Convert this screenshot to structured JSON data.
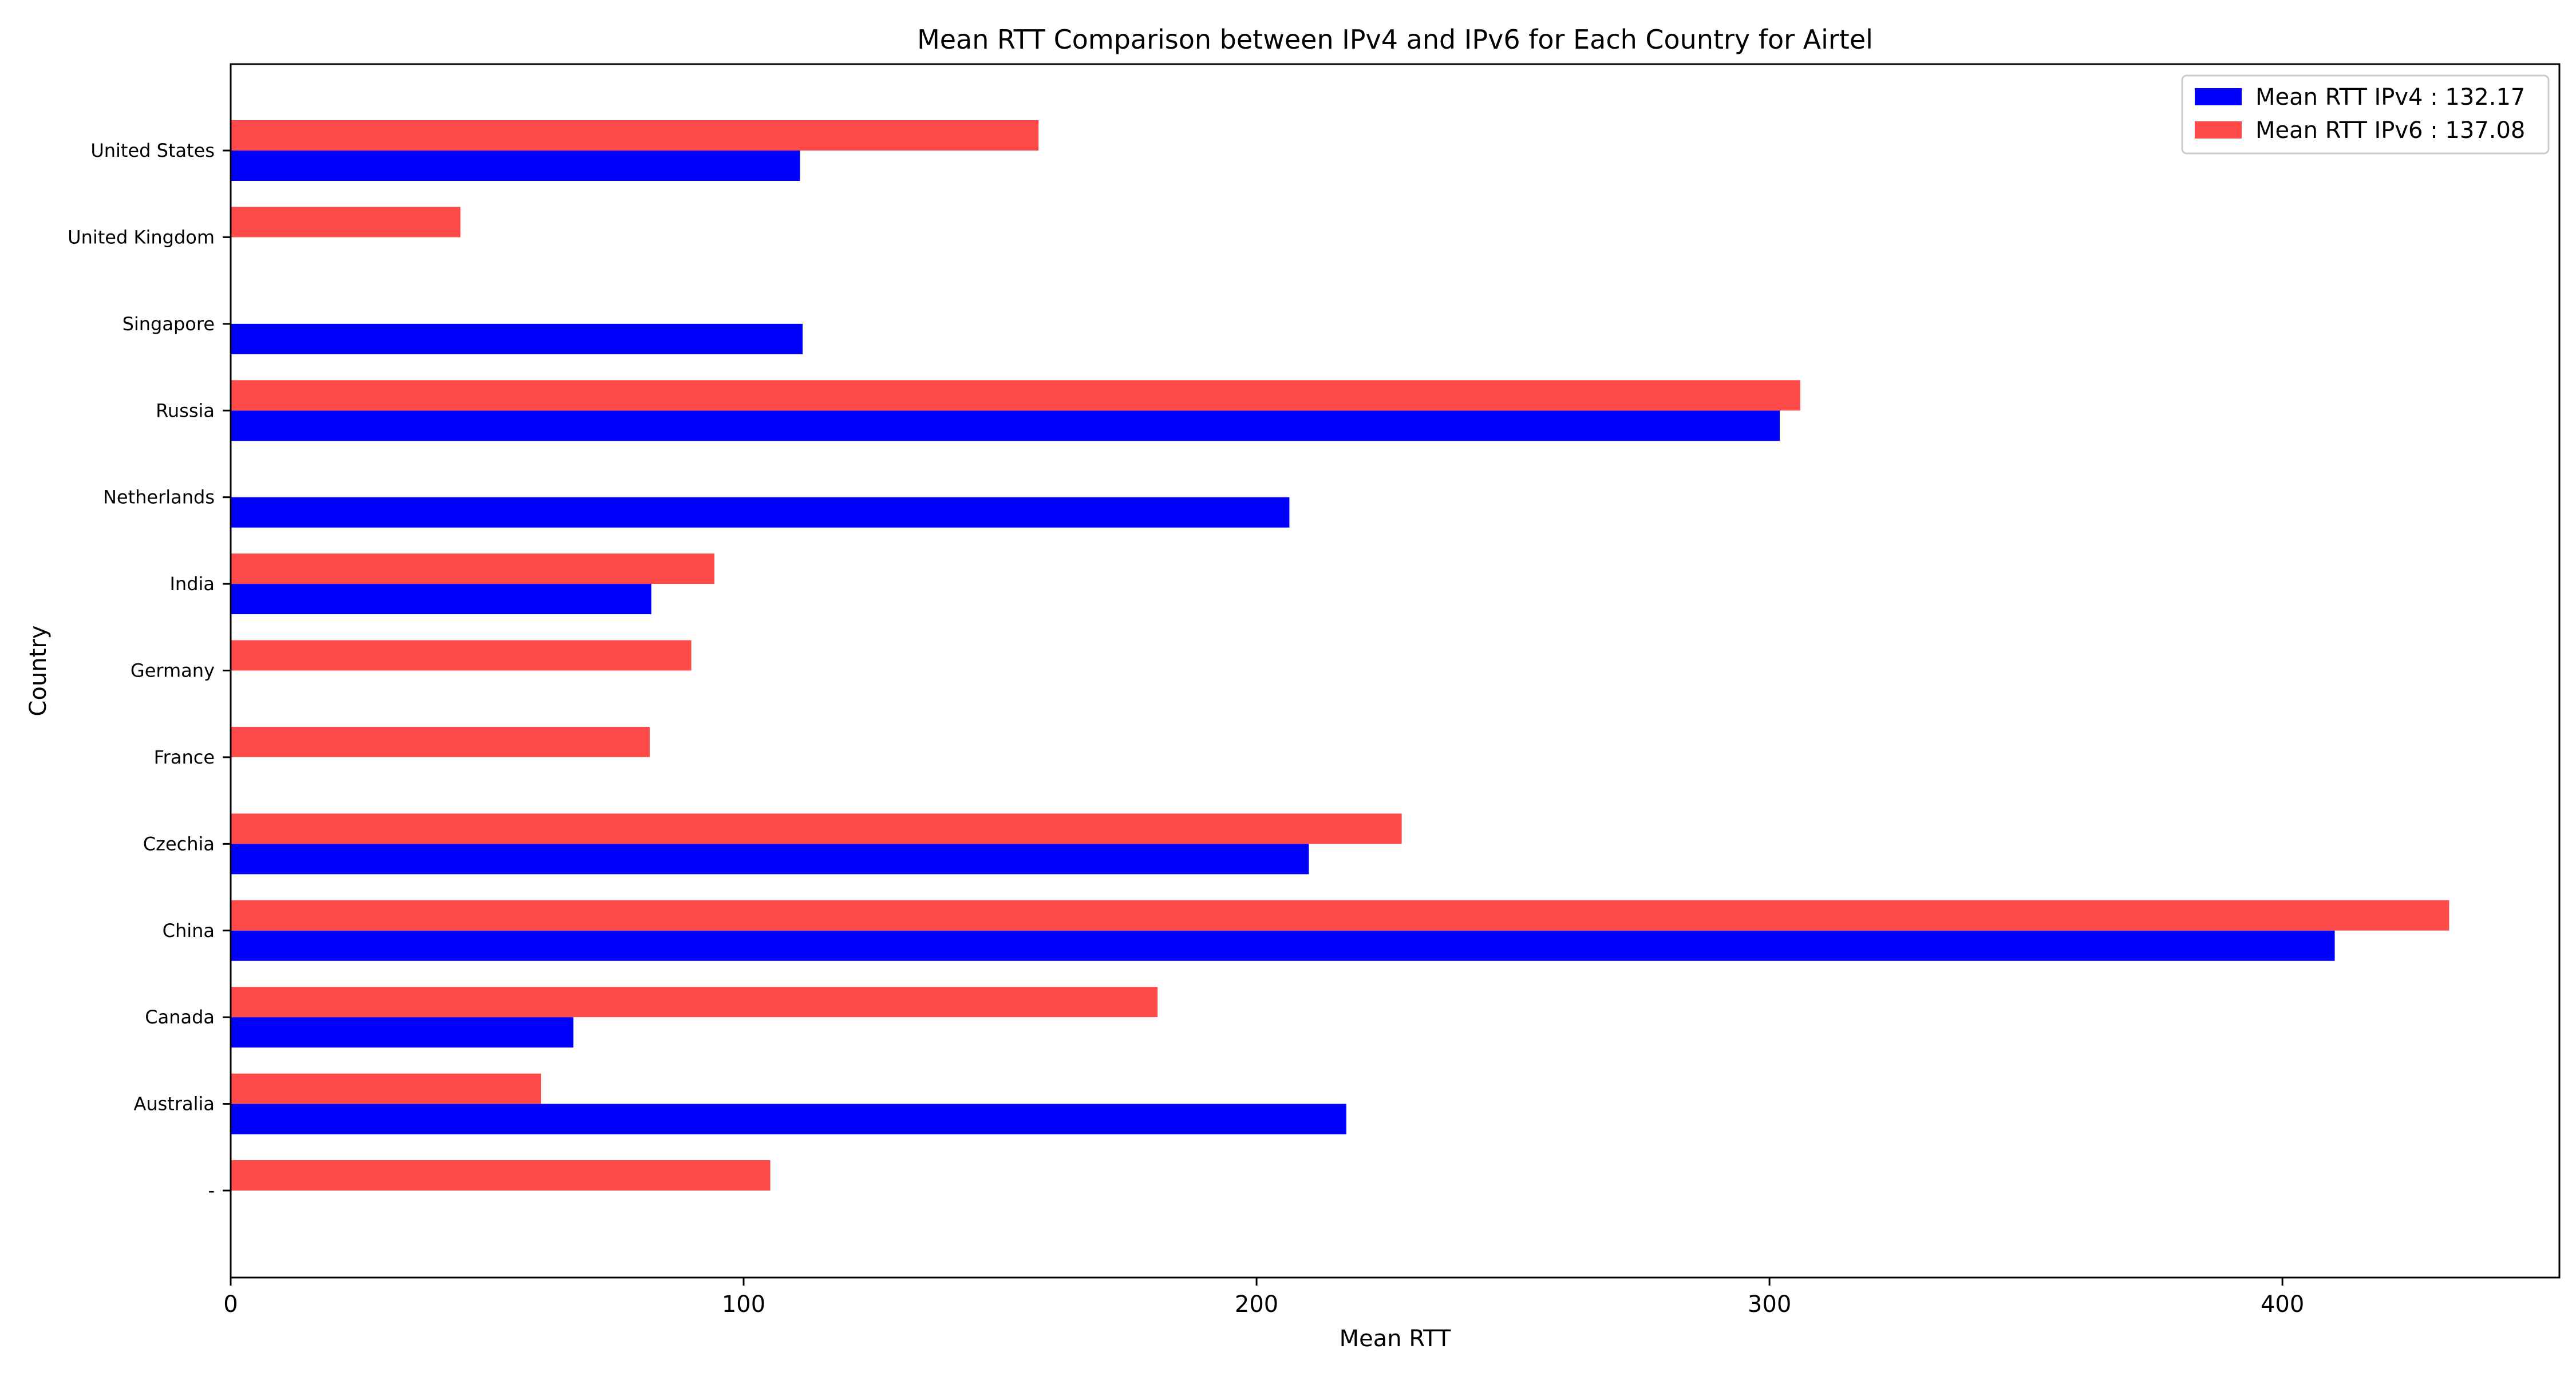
{
  "chart_data": {
    "type": "bar",
    "orientation": "horizontal",
    "title": "Mean RTT Comparison between IPv4 and IPv6 for Each Country for Airtel",
    "xlabel": "Mean RTT",
    "ylabel": "Country",
    "categories": [
      "-",
      "Australia",
      "Canada",
      "China",
      "Czechia",
      "France",
      "Germany",
      "India",
      "Netherlands",
      "Russia",
      "Singapore",
      "United Kingdom",
      "United States"
    ],
    "series": [
      {
        "name": "Mean RTT IPv4 : 132.17",
        "color": "#0000ff",
        "values": [
          null,
          217.5,
          66.8,
          410.2,
          210.2,
          null,
          null,
          82.0,
          206.4,
          302.0,
          111.5,
          null,
          111.0
        ]
      },
      {
        "name": "Mean RTT IPv6 : 137.08",
        "color": "#ff4a4a",
        "values": [
          105.2,
          60.5,
          180.7,
          432.5,
          228.3,
          81.7,
          89.8,
          94.3,
          null,
          306.0,
          null,
          44.8,
          157.5
        ]
      }
    ],
    "xlim": [
      0,
      454
    ],
    "xticks": [
      0,
      100,
      200,
      300,
      400
    ],
    "grid": false,
    "legend_position": "top-right"
  }
}
